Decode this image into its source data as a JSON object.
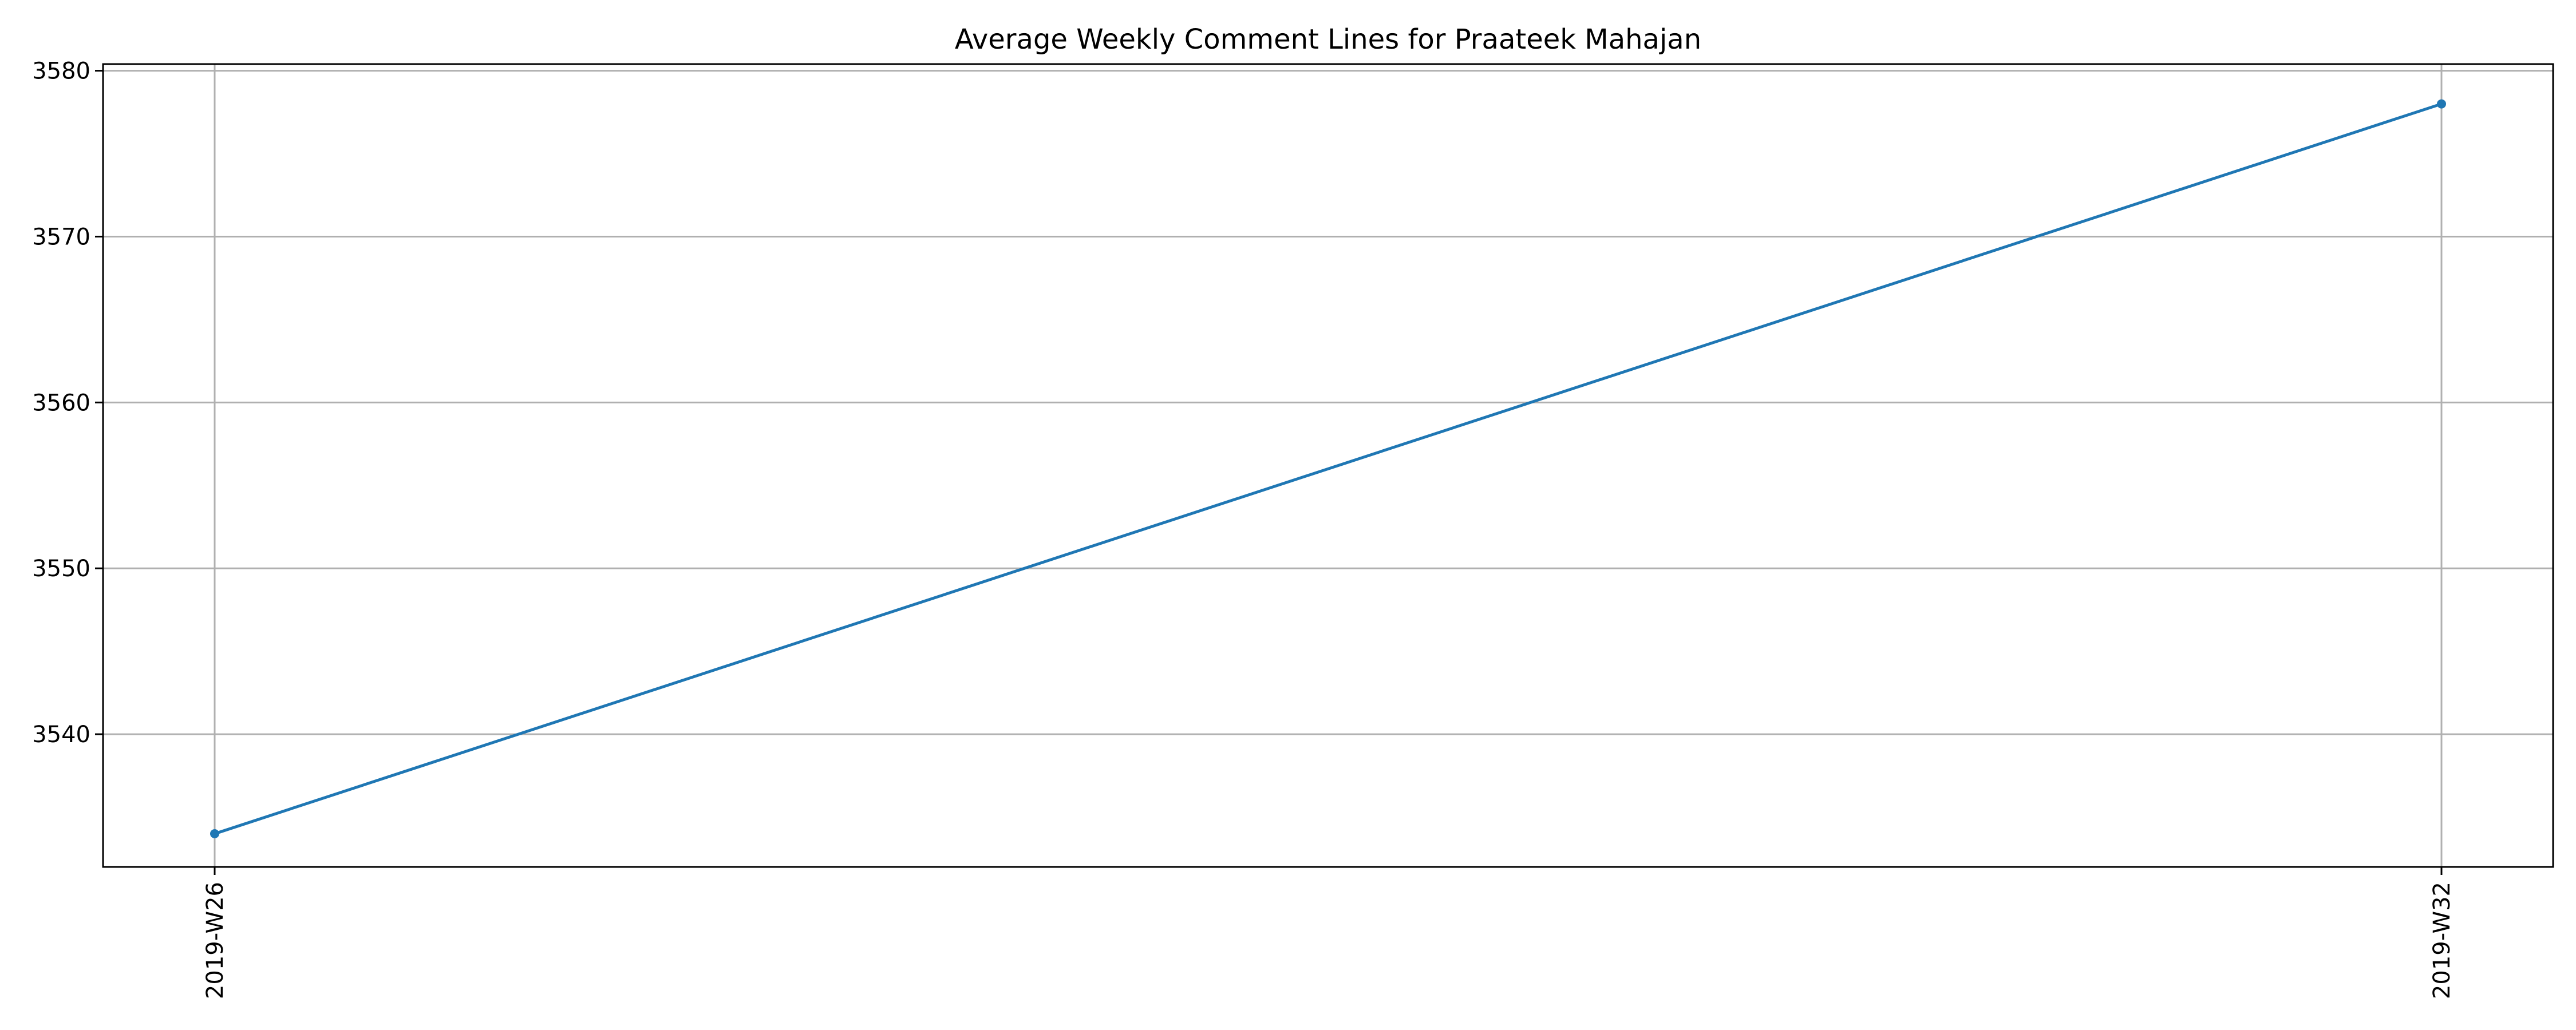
{
  "chart_data": {
    "type": "line",
    "title": "Average Weekly Comment Lines for Praateek Mahajan",
    "xlabel": "",
    "ylabel": "",
    "categories": [
      "2019-W26",
      "2019-W32"
    ],
    "series": [
      {
        "values": [
          3534,
          3578
        ]
      }
    ],
    "ylim": [
      3532,
      3580.4
    ],
    "yticks": [
      3540,
      3550,
      3560,
      3570,
      3580
    ],
    "grid": true,
    "legend": "none",
    "marker": "circle"
  },
  "colors": {
    "series": "#1f77b4",
    "grid": "#b0b0b0",
    "axis": "#000000"
  }
}
